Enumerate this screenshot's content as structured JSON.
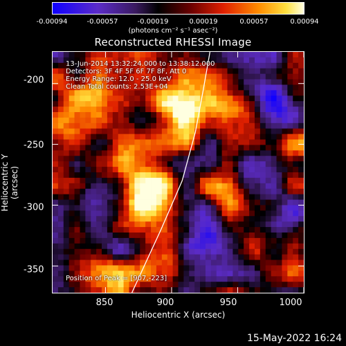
{
  "colorbar": {
    "ticks": [
      "-0.00094",
      "-0.00057",
      "-0.00019",
      "0.00019",
      "0.00057",
      "0.00094"
    ],
    "unit_label": "(photons cm⁻² s⁻¹ asec⁻²)",
    "range": [
      -0.00094,
      0.00094
    ]
  },
  "chart_data": {
    "type": "heatmap",
    "title": "Reconstructed RHESSI Image",
    "xlabel": "Heliocentric X (arcsec)",
    "ylabel": "Heliocentric Y (arcsec)",
    "xlim": [
      810,
      1000
    ],
    "ylim": [
      -372,
      -174
    ],
    "x_ticks": [
      "850",
      "900",
      "950",
      "1000"
    ],
    "y_ticks": [
      "-200",
      "-250",
      "-300",
      "-350"
    ],
    "colormap": [
      "#2000ff",
      "#5c2db8",
      "#000000",
      "#8b0000",
      "#ff3300",
      "#ffa500",
      "#ffffe0"
    ],
    "peaks": [
      {
        "x": 907,
        "y": -223,
        "value": 0.00094
      },
      {
        "x": 882,
        "y": -283,
        "value": 0.00085
      },
      {
        "x": 872,
        "y": -255,
        "value": 0.0006
      },
      {
        "x": 945,
        "y": -218,
        "value": 0.00065
      },
      {
        "x": 850,
        "y": -355,
        "value": 0.00055
      },
      {
        "x": 830,
        "y": -210,
        "value": 0.0006
      },
      {
        "x": 820,
        "y": -240,
        "value": 0.0005
      },
      {
        "x": 935,
        "y": -290,
        "value": 0.0004
      },
      {
        "x": 975,
        "y": -330,
        "value": 0.00045
      },
      {
        "x": 990,
        "y": -250,
        "value": 0.0004
      },
      {
        "x": 900,
        "y": -345,
        "value": 0.0005
      },
      {
        "x": 870,
        "y": -310,
        "value": 0.0004
      }
    ],
    "troughs": [
      {
        "x": 960,
        "y": -200,
        "value": -0.0008
      },
      {
        "x": 985,
        "y": -225,
        "value": -0.0007
      },
      {
        "x": 840,
        "y": -300,
        "value": -0.0006
      },
      {
        "x": 860,
        "y": -330,
        "value": -0.0005
      },
      {
        "x": 925,
        "y": -330,
        "value": -0.0007
      },
      {
        "x": 955,
        "y": -270,
        "value": -0.0005
      },
      {
        "x": 985,
        "y": -310,
        "value": -0.0006
      },
      {
        "x": 915,
        "y": -300,
        "value": -0.0004
      }
    ],
    "limb_curve": [
      [
        870,
        -372
      ],
      [
        892,
        -320
      ],
      [
        908,
        -280
      ],
      [
        918,
        -240
      ],
      [
        924,
        -205
      ],
      [
        929,
        -174
      ]
    ]
  },
  "annotations": {
    "time_range": "13-Jun-2014 13:32:24.000 to 13:38:12.000",
    "detectors": "Detectors: 3F 4F 5F 6F 7F 8F, Att 0",
    "energy": "Energy Range: 12.0 - 25.0 keV",
    "method": "Clean    Total counts: 2.53E+04",
    "peak": "Position of Peak = [907,-223]"
  },
  "footer": {
    "date": "15-May-2022 16:24"
  }
}
